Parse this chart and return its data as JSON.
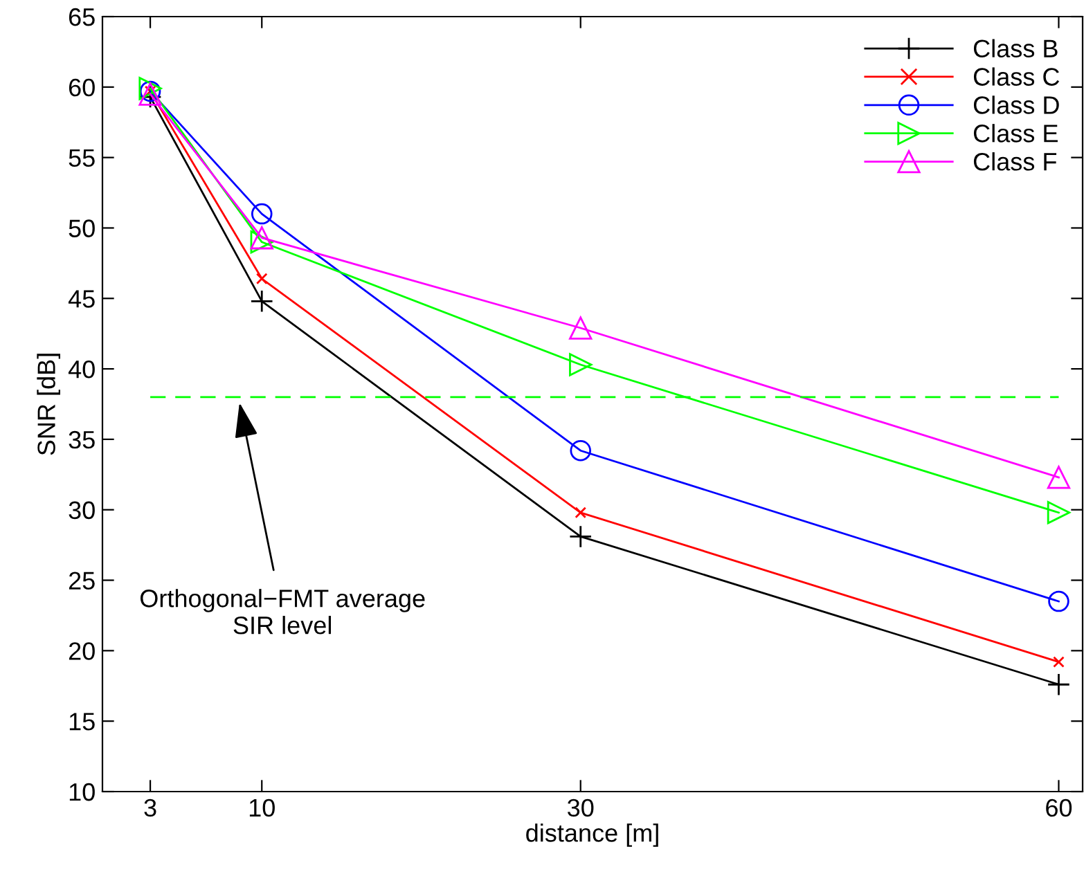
{
  "chart_data": {
    "type": "line",
    "xlabel": "distance [m]",
    "ylabel": "SNR [dB]",
    "x": [
      3,
      10,
      30,
      60
    ],
    "series": [
      {
        "name": "Class B",
        "color": "#000000",
        "marker": "plus",
        "values": [
          59.3,
          44.8,
          28.1,
          17.6
        ]
      },
      {
        "name": "Class C",
        "color": "#ff0000",
        "marker": "x",
        "values": [
          59.7,
          46.4,
          29.8,
          19.2
        ]
      },
      {
        "name": "Class D",
        "color": "#0000ff",
        "marker": "circle",
        "values": [
          59.7,
          51.0,
          34.2,
          23.5
        ]
      },
      {
        "name": "Class E",
        "color": "#00ff00",
        "marker": "triangle_right",
        "values": [
          59.9,
          49.0,
          40.3,
          29.8
        ]
      },
      {
        "name": "Class F",
        "color": "#ff00ff",
        "marker": "triangle",
        "values": [
          59.5,
          49.3,
          42.9,
          32.3
        ]
      }
    ],
    "xlim": [
      0,
      61.5
    ],
    "ylim": [
      10,
      65
    ],
    "xticks": [
      3,
      10,
      30,
      60
    ],
    "yticks": [
      10,
      15,
      20,
      25,
      30,
      35,
      40,
      45,
      50,
      55,
      60,
      65
    ],
    "ref_lines": [
      {
        "axis": "y",
        "value": 38,
        "color": "#00ff00",
        "line_style": "dashed"
      }
    ],
    "annotations": [
      {
        "text": "Orthogonal−FMT average\nSIR level",
        "x": 8.6,
        "y": 37.6
      }
    ],
    "grid": false,
    "legend": "top right",
    "line_style": "solid"
  }
}
